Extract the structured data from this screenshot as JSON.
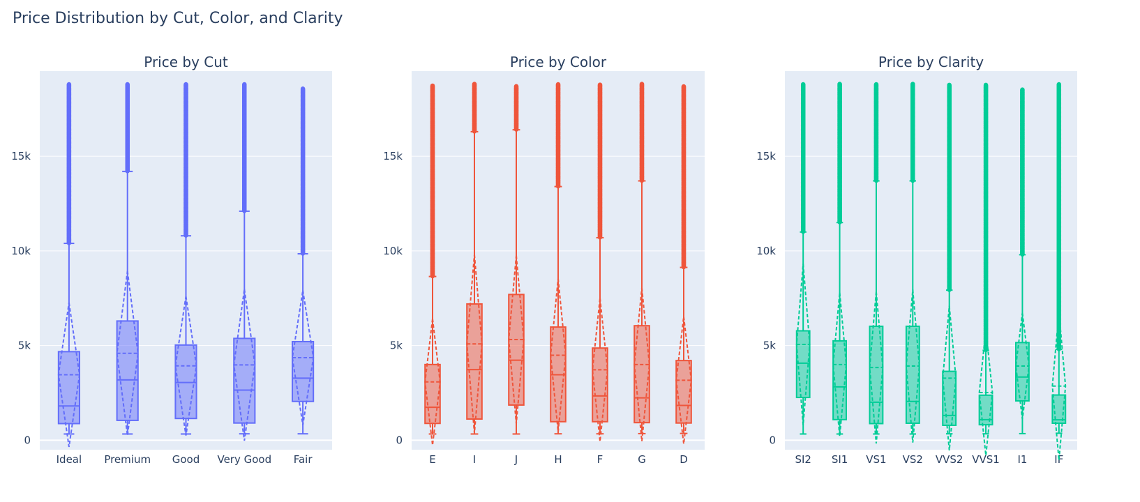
{
  "title": "Price Distribution by Cut, Color, and Clarity",
  "chart_data": [
    {
      "type": "box",
      "title": "Price by Cut",
      "color": "#636efa",
      "ylim": [
        -500,
        19500
      ],
      "yticks": [
        0,
        5000,
        10000,
        15000
      ],
      "ytick_labels": [
        "0",
        "5k",
        "10k",
        "15k"
      ],
      "categories": [
        "Ideal",
        "Premium",
        "Good",
        "Very Good",
        "Fair"
      ],
      "boxes": [
        {
          "q1": 880,
          "median": 1810,
          "q3": 4680,
          "lower_fence": 330,
          "upper_fence": 10400,
          "mean": 3460,
          "sd": 3810,
          "outlier_max": 18800
        },
        {
          "q1": 1050,
          "median": 3190,
          "q3": 6300,
          "lower_fence": 330,
          "upper_fence": 14200,
          "mean": 4590,
          "sd": 4350,
          "outlier_max": 18800
        },
        {
          "q1": 1150,
          "median": 3050,
          "q3": 5030,
          "lower_fence": 330,
          "upper_fence": 10800,
          "mean": 3930,
          "sd": 3680,
          "outlier_max": 18800
        },
        {
          "q1": 910,
          "median": 2650,
          "q3": 5380,
          "lower_fence": 340,
          "upper_fence": 12100,
          "mean": 3980,
          "sd": 4000,
          "outlier_max": 18800
        },
        {
          "q1": 2050,
          "median": 3280,
          "q3": 5210,
          "lower_fence": 340,
          "upper_fence": 9850,
          "mean": 4360,
          "sd": 3560,
          "outlier_max": 18570
        }
      ]
    },
    {
      "type": "box",
      "title": "Price by Color",
      "color": "#ef553b",
      "ylim": [
        -500,
        19500
      ],
      "yticks": [
        0,
        5000,
        10000,
        15000
      ],
      "ytick_labels": [
        "0",
        "5k",
        "10k",
        "15k"
      ],
      "categories": [
        "E",
        "I",
        "J",
        "H",
        "F",
        "G",
        "D"
      ],
      "boxes": [
        {
          "q1": 890,
          "median": 1740,
          "q3": 4000,
          "lower_fence": 330,
          "upper_fence": 8650,
          "mean": 3080,
          "sd": 3340,
          "outlier_max": 18730
        },
        {
          "q1": 1120,
          "median": 3730,
          "q3": 7200,
          "lower_fence": 330,
          "upper_fence": 16300,
          "mean": 5090,
          "sd": 4720,
          "outlier_max": 18820
        },
        {
          "q1": 1860,
          "median": 4230,
          "q3": 7700,
          "lower_fence": 330,
          "upper_fence": 16400,
          "mean": 5320,
          "sd": 4440,
          "outlier_max": 18710
        },
        {
          "q1": 980,
          "median": 3460,
          "q3": 5980,
          "lower_fence": 340,
          "upper_fence": 13400,
          "mean": 4490,
          "sd": 4050,
          "outlier_max": 18800
        },
        {
          "q1": 980,
          "median": 2340,
          "q3": 4870,
          "lower_fence": 340,
          "upper_fence": 10700,
          "mean": 3720,
          "sd": 3790,
          "outlier_max": 18790
        },
        {
          "q1": 930,
          "median": 2240,
          "q3": 6050,
          "lower_fence": 350,
          "upper_fence": 13700,
          "mean": 4000,
          "sd": 4050,
          "outlier_max": 18820
        },
        {
          "q1": 910,
          "median": 1840,
          "q3": 4210,
          "lower_fence": 360,
          "upper_fence": 9130,
          "mean": 3170,
          "sd": 3360,
          "outlier_max": 18690
        }
      ]
    },
    {
      "type": "box",
      "title": "Price by Clarity",
      "color": "#00cc96",
      "ylim": [
        -500,
        19500
      ],
      "yticks": [
        0,
        5000,
        10000,
        15000
      ],
      "ytick_labels": [
        "0",
        "5k",
        "10k",
        "15k"
      ],
      "categories": [
        "SI2",
        "SI1",
        "VS1",
        "VS2",
        "VVS2",
        "VVS1",
        "I1",
        "IF"
      ],
      "boxes": [
        {
          "q1": 2260,
          "median": 4070,
          "q3": 5780,
          "lower_fence": 330,
          "upper_fence": 11000,
          "mean": 5060,
          "sd": 4260,
          "outlier_max": 18800
        },
        {
          "q1": 1090,
          "median": 2820,
          "q3": 5250,
          "lower_fence": 330,
          "upper_fence": 11500,
          "mean": 4000,
          "sd": 3800,
          "outlier_max": 18820
        },
        {
          "q1": 880,
          "median": 2010,
          "q3": 6020,
          "lower_fence": 330,
          "upper_fence": 13700,
          "mean": 3840,
          "sd": 4010,
          "outlier_max": 18800
        },
        {
          "q1": 900,
          "median": 2050,
          "q3": 6020,
          "lower_fence": 330,
          "upper_fence": 13700,
          "mean": 3920,
          "sd": 4040,
          "outlier_max": 18820
        },
        {
          "q1": 790,
          "median": 1310,
          "q3": 3640,
          "lower_fence": 340,
          "upper_fence": 7930,
          "mean": 3280,
          "sd": 3820,
          "outlier_max": 18770
        },
        {
          "q1": 820,
          "median": 1090,
          "q3": 2380,
          "lower_fence": 340,
          "upper_fence": 4750,
          "mean": 2520,
          "sd": 3330,
          "outlier_max": 18780
        },
        {
          "q1": 2080,
          "median": 3340,
          "q3": 5160,
          "lower_fence": 350,
          "upper_fence": 9800,
          "mean": 3920,
          "sd": 2810,
          "outlier_max": 18530
        },
        {
          "q1": 900,
          "median": 1080,
          "q3": 2390,
          "lower_fence": 370,
          "upper_fence": 4800,
          "mean": 2860,
          "sd": 3920,
          "outlier_max": 18800
        }
      ]
    }
  ]
}
